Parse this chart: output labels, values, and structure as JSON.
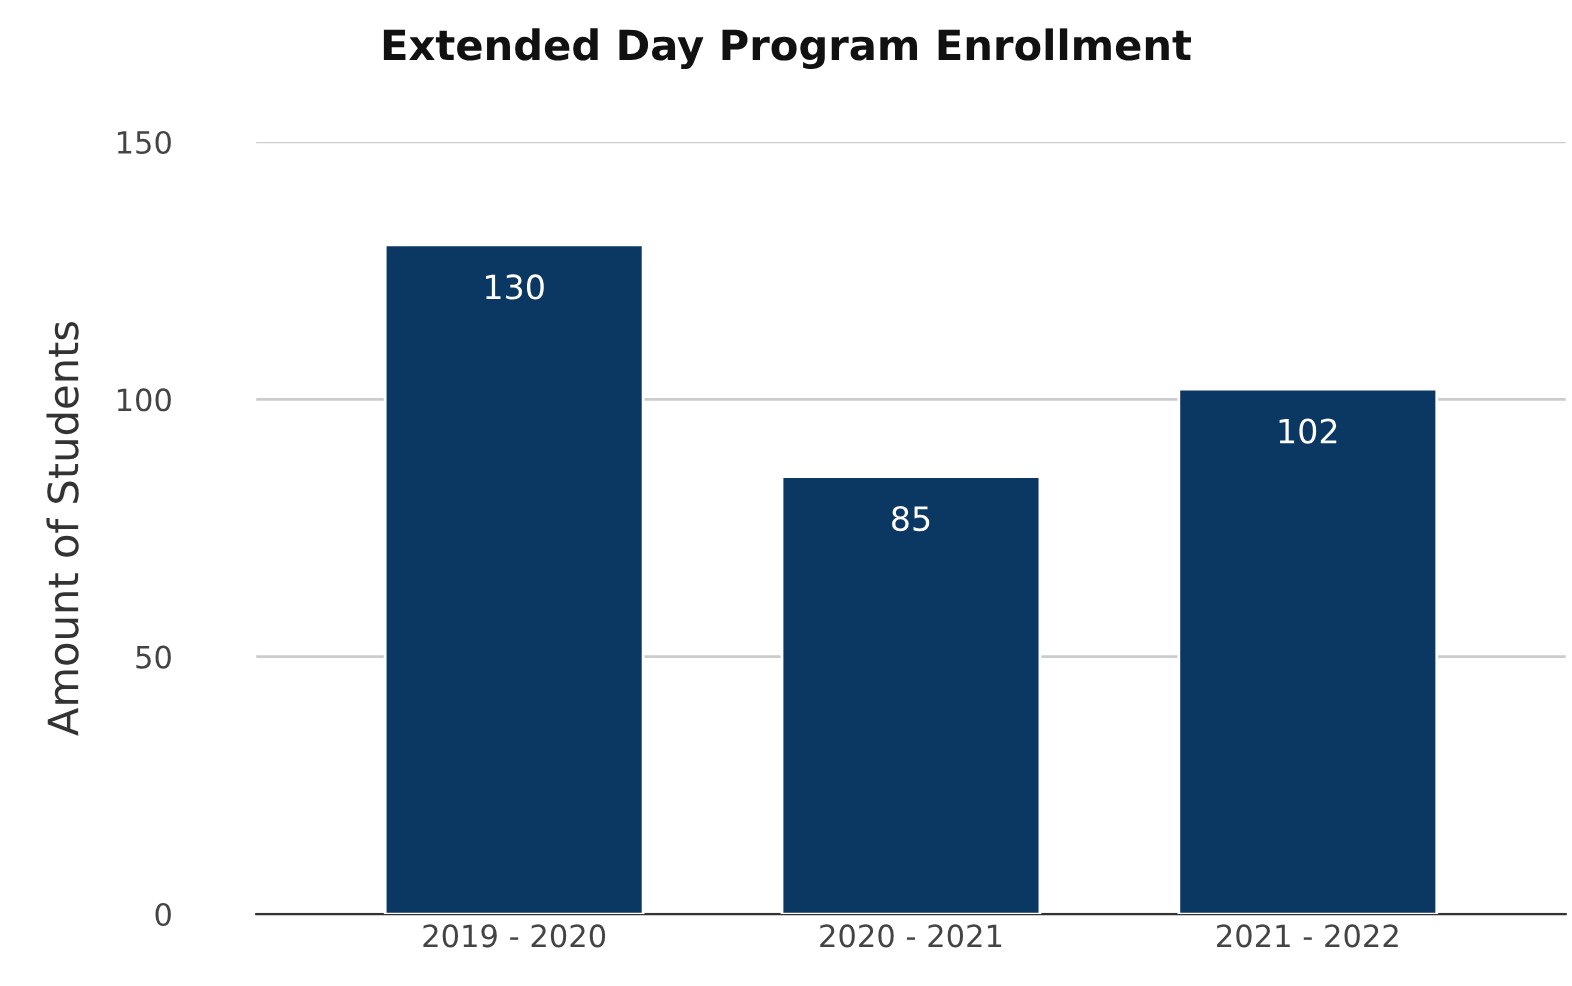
{
  "chart_data": {
    "type": "bar",
    "title": "Extended Day Program Enrollment",
    "ylabel": "Amount of Students",
    "categories": [
      "2019 - 2020",
      "2020 - 2021",
      "2021 - 2022"
    ],
    "values": [
      130,
      85,
      102
    ],
    "color": "#0b3763",
    "ylim": [
      0,
      150
    ],
    "yticks": [
      0,
      50,
      100,
      150
    ],
    "grid": "y",
    "data_labels": true
  }
}
